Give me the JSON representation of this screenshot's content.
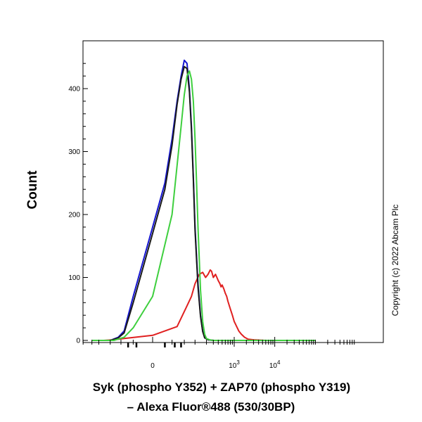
{
  "chart_data": {
    "type": "line",
    "xlabel_line1": "Syk (phospho Y352) + ZAP70 (phospho Y319)",
    "xlabel_line2": "– Alexa Fluor®488 (530/30BP)",
    "ylabel": "Count",
    "ylim": [
      0,
      450
    ],
    "y_ticks": [
      {
        "value": 0,
        "label": "0"
      },
      {
        "value": 100,
        "label": "100"
      },
      {
        "value": 200,
        "label": "200"
      },
      {
        "value": 300,
        "label": "300"
      },
      {
        "value": 400,
        "label": "400"
      }
    ],
    "x_ticks": [
      {
        "value": 0,
        "base": "0",
        "exp": ""
      },
      {
        "value": 1000,
        "base": "10",
        "exp": "3"
      },
      {
        "value": 10000,
        "base": "10",
        "exp": "4"
      }
    ],
    "x_scale": "biexponential",
    "annotation": "Copyright (c) 2022 Abcam Plc",
    "series": [
      {
        "color": "#e02020",
        "x": [
          -300,
          -150,
          -80,
          -40,
          0,
          30,
          60,
          80,
          100,
          130,
          160,
          190,
          220,
          250,
          270,
          300,
          340,
          370,
          400,
          440,
          470,
          500,
          550,
          600,
          650,
          700,
          800,
          900,
          1000,
          1150,
          1300,
          1500,
          1800,
          2200,
          3000,
          6000,
          20000,
          100000
        ],
        "y": [
          0,
          0,
          1,
          3,
          8,
          22,
          55,
          70,
          90,
          105,
          108,
          100,
          105,
          112,
          110,
          100,
          105,
          100,
          95,
          90,
          85,
          88,
          82,
          75,
          70,
          62,
          50,
          40,
          30,
          22,
          15,
          10,
          5,
          2,
          1,
          0,
          0,
          0
        ]
      },
      {
        "color": "#1515d0",
        "x": [
          -300,
          -100,
          -60,
          -40,
          -20,
          0,
          10,
          20,
          30,
          40,
          50,
          60,
          70,
          80,
          90,
          100,
          120,
          140,
          160,
          180,
          220,
          300,
          500,
          100000
        ],
        "y": [
          0,
          0,
          5,
          15,
          70,
          180,
          250,
          320,
          380,
          420,
          445,
          440,
          400,
          340,
          260,
          180,
          90,
          40,
          15,
          5,
          1,
          0,
          0,
          0
        ]
      },
      {
        "color": "#1a1a1a",
        "x": [
          -300,
          -100,
          -60,
          -40,
          -20,
          0,
          10,
          20,
          30,
          40,
          50,
          60,
          70,
          80,
          90,
          100,
          120,
          140,
          160,
          180,
          220,
          300,
          500,
          100000
        ],
        "y": [
          0,
          0,
          4,
          12,
          60,
          170,
          240,
          310,
          375,
          415,
          435,
          432,
          395,
          335,
          255,
          175,
          85,
          38,
          14,
          4,
          1,
          0,
          0,
          0
        ]
      },
      {
        "color": "#3ecf3e",
        "x": [
          -300,
          -80,
          -40,
          -20,
          0,
          20,
          40,
          50,
          60,
          70,
          80,
          90,
          100,
          110,
          120,
          140,
          160,
          180,
          200,
          240,
          300,
          500,
          100000
        ],
        "y": [
          0,
          0,
          5,
          20,
          70,
          200,
          340,
          390,
          420,
          428,
          415,
          380,
          320,
          250,
          180,
          80,
          30,
          10,
          3,
          1,
          0,
          0,
          0
        ]
      }
    ]
  }
}
